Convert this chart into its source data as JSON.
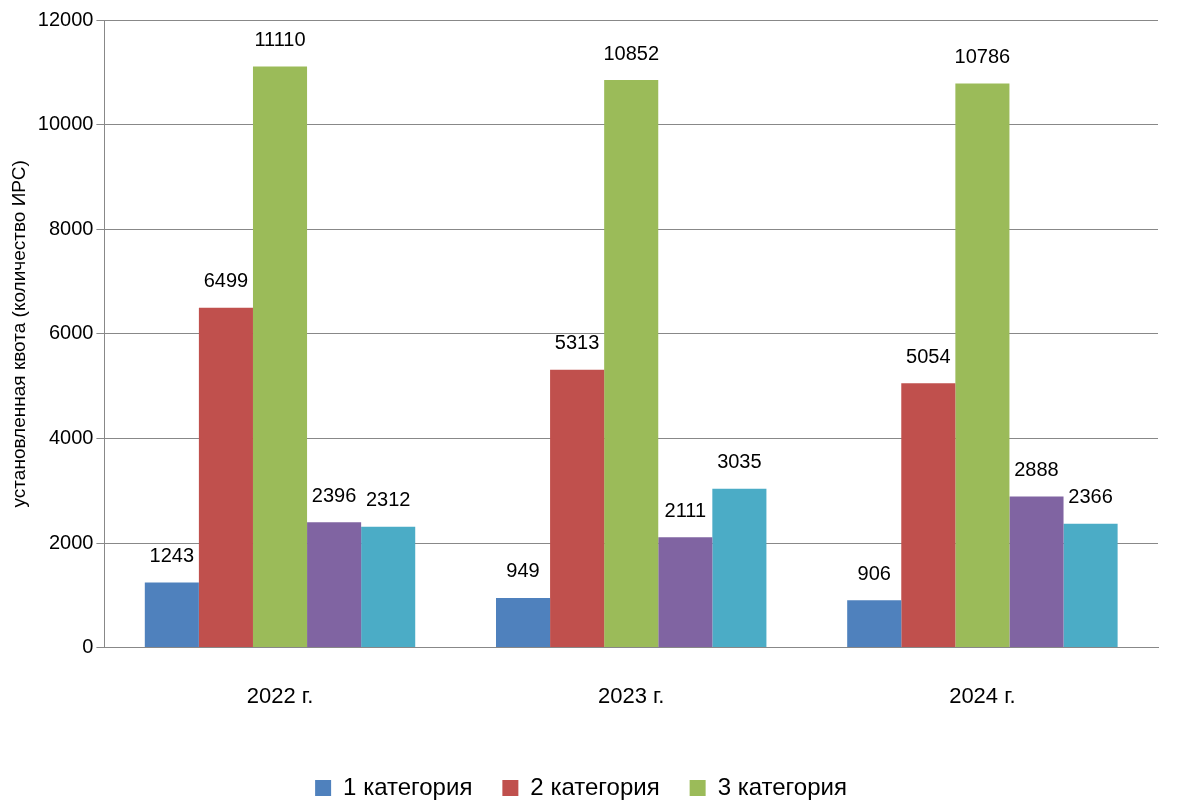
{
  "chart_data": {
    "type": "bar",
    "ylabel": "установленная квота (количество ИРС)",
    "categories": [
      "2022 г.",
      "2023 г.",
      "2024 г."
    ],
    "series": [
      {
        "name": "1 категория",
        "color": "#4f81bd",
        "values": [
          1243,
          949,
          906
        ]
      },
      {
        "name": "2 категория",
        "color": "#c0504d",
        "values": [
          6499,
          5313,
          5054
        ]
      },
      {
        "name": "3 категория",
        "color": "#9bbb59",
        "values": [
          11110,
          10852,
          10786
        ]
      },
      {
        "color": "#8064a2",
        "values": [
          2396,
          2111,
          2888
        ]
      },
      {
        "color": "#4bacc6",
        "values": [
          2312,
          3035,
          2366
        ]
      }
    ],
    "ylim": [
      0,
      12000
    ],
    "yticks": [
      0,
      2000,
      4000,
      6000,
      8000,
      10000,
      12000
    ],
    "grid": "y",
    "legend": "bottom",
    "data_labels": true
  }
}
